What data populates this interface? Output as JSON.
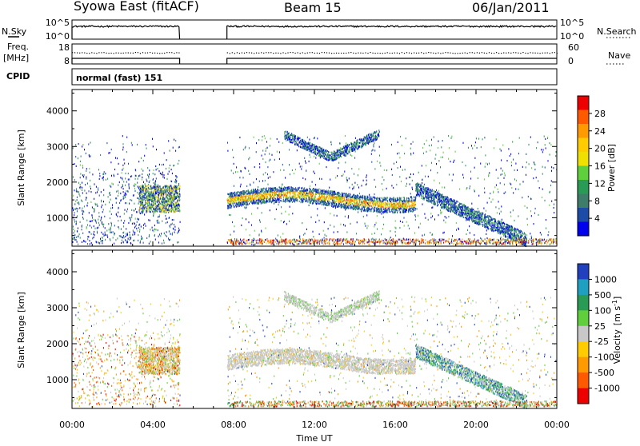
{
  "header": {
    "station": "Syowa East (fitACF)",
    "beam": "Beam 15",
    "date": "06/Jan/2011"
  },
  "top_panels": {
    "nsky_label": "N.Sky",
    "nsky_ticks": [
      "10^5",
      "10^0"
    ],
    "nsearch_label": "N.Search",
    "nsearch_ticks": [
      "10^5",
      "10^0"
    ],
    "freq_label_1": "Freq.",
    "freq_label_2": "[MHz]",
    "freq_ticks": [
      "18",
      "8"
    ],
    "nave_label": "Nave",
    "nave_ticks": [
      "60",
      "0"
    ],
    "cpid_label": "CPID",
    "cpid_value": "normal (fast) 151"
  },
  "chart_data": [
    {
      "type": "heatmap",
      "panel": "power",
      "ylabel": "Slant Range [km]",
      "y_ticks": [
        "4000",
        "3000",
        "2000",
        "1000"
      ],
      "y_tick_values": [
        4000,
        3000,
        2000,
        1000
      ],
      "ylim": [
        200,
        4600
      ],
      "xlim_hours": [
        0,
        24
      ],
      "x_ticks": [
        "00:00",
        "04:00",
        "08:00",
        "12:00",
        "16:00",
        "20:00",
        "00:00"
      ],
      "data_gap_hours": [
        5.33,
        7.67
      ],
      "colorbar": {
        "label": "Power [dB]",
        "ticks": [
          "28",
          "24",
          "20",
          "16",
          "12",
          "8",
          "4"
        ],
        "colors": [
          "#ee0000",
          "#ff5a00",
          "#ff9a00",
          "#ffcc00",
          "#f0e000",
          "#5fcf3c",
          "#2a9b55",
          "#3d7d6a",
          "#1d4ca8",
          "#0000ee"
        ]
      },
      "echo_bands": [
        {
          "name": "main",
          "t": [
            7.67,
            17.0
          ],
          "range_km": [
            1300,
            1750
          ]
        },
        {
          "name": "early",
          "t": [
            3.3,
            5.33
          ],
          "range_km": [
            1150,
            1900
          ]
        },
        {
          "name": "upper-arc",
          "t": [
            10.5,
            15.2
          ],
          "range_km": [
            2700,
            3400
          ]
        },
        {
          "name": "descending",
          "t": [
            17.0,
            22.5
          ],
          "range_km": [
            300,
            1900
          ]
        }
      ]
    },
    {
      "type": "heatmap",
      "panel": "velocity",
      "ylabel": "Slant Range [km]",
      "y_ticks": [
        "4000",
        "3000",
        "2000",
        "1000"
      ],
      "y_tick_values": [
        4000,
        3000,
        2000,
        1000
      ],
      "ylim": [
        200,
        4600
      ],
      "xlim_hours": [
        0,
        24
      ],
      "x_ticks": [
        "00:00",
        "04:00",
        "08:00",
        "12:00",
        "16:00",
        "20:00",
        "00:00"
      ],
      "xlabel": "Time UT",
      "colorbar": {
        "label": "Velocity",
        "unit": "[m s",
        "unit_sup": "-1",
        "unit_end": "]",
        "ticks": [
          "1000",
          "500",
          "100",
          "25",
          "-25",
          "-100",
          "-500",
          "-1000"
        ],
        "colors": [
          "#2040c0",
          "#20a0c0",
          "#2a9b55",
          "#5fcf3c",
          "#c8c8c8",
          "#ffcc00",
          "#ff9a00",
          "#ff5a00",
          "#ee0000"
        ]
      }
    }
  ]
}
